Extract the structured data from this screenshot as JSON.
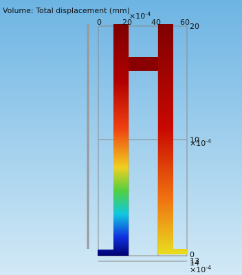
{
  "title": "Volume: Total displacement (mm)",
  "top_axis": {
    "ticks": [
      "0",
      "20",
      "40",
      "60"
    ],
    "exponent": {
      "base": "×10",
      "power": "-4"
    }
  },
  "right_axis": {
    "ticks": [
      "20",
      "10",
      "0"
    ],
    "exponent": {
      "base": "×10",
      "power": "-4"
    }
  },
  "bottom_axis": {
    "ticks": [
      "13",
      "14"
    ],
    "exponent": {
      "base": "×10",
      "power": "-4"
    }
  }
}
